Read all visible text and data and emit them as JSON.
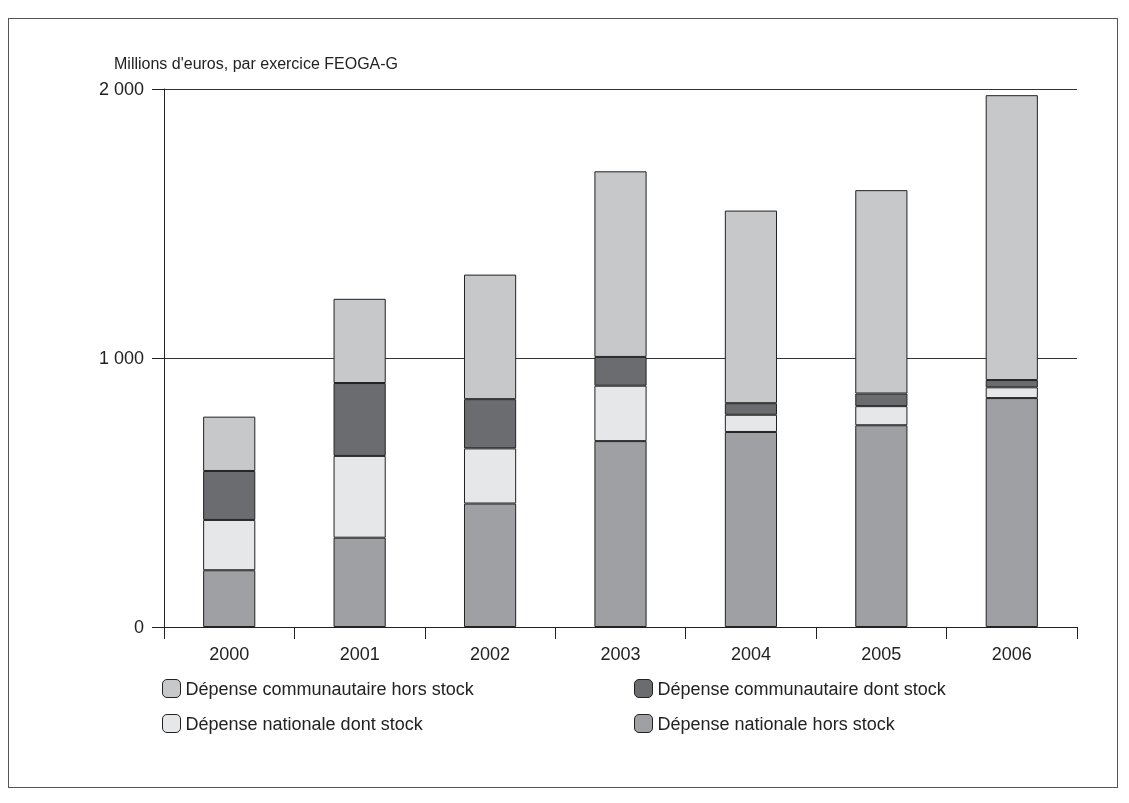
{
  "chart_data": {
    "type": "bar",
    "stacked": true,
    "ylabel": "Millions d'euros, par exercice FEOGA-G",
    "categories": [
      "2000",
      "2001",
      "2002",
      "2003",
      "2004",
      "2005",
      "2006"
    ],
    "series": [
      {
        "name": "Dépense nationale hors stock",
        "color": "#9fa0a4",
        "values": [
          211,
          332,
          459,
          691,
          725,
          750,
          851
        ]
      },
      {
        "name": "Dépense nationale dont stock",
        "color": "#e6e7e9",
        "values": [
          187,
          304,
          205,
          206,
          64,
          71,
          40
        ]
      },
      {
        "name": "Dépense communautaire dont stock",
        "color": "#6b6c70",
        "values": [
          182,
          271,
          183,
          107,
          43,
          47,
          27
        ]
      },
      {
        "name": "Dépense communautaire hors stock",
        "color": "#c7c8ca",
        "values": [
          202,
          313,
          463,
          690,
          716,
          756,
          1059
        ]
      }
    ],
    "ylim": [
      0,
      2000
    ],
    "yticks": [
      {
        "value": 0,
        "label": "0"
      },
      {
        "value": 1000,
        "label": "1 000"
      },
      {
        "value": 2000,
        "label": "2 000"
      }
    ],
    "grid": "y",
    "legend": "bottom"
  }
}
